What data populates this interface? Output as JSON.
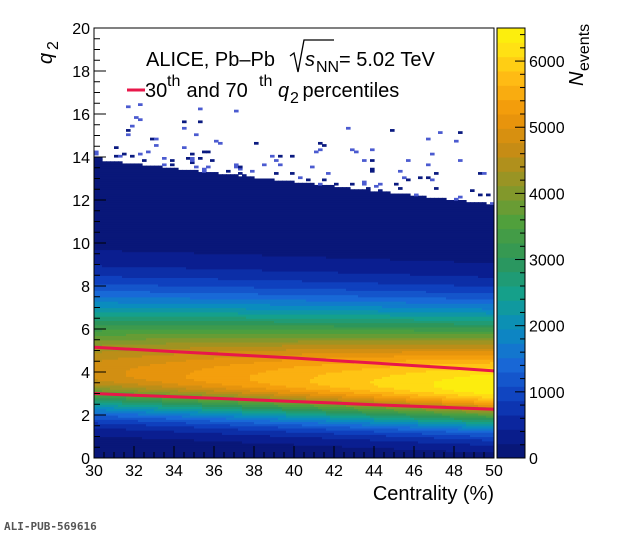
{
  "chart_data": {
    "type": "heatmap",
    "collaboration": "ALICE, Pb–Pb",
    "energy_symbol": "s",
    "energy_subscript": "NN",
    "energy_value": "= 5.02 TeV",
    "legend_line_base": "30",
    "legend_line_sup1": "th",
    "legend_line_and": " and 70",
    "legend_line_sup2": "th",
    "legend_line_var": "q",
    "legend_line_var_sub": "2",
    "legend_line_end": " percentiles",
    "xlabel": "Centrality (%)",
    "ylabel_main": "q",
    "ylabel_sub": "2",
    "zlabel_main": "N",
    "zlabel_sub": "events",
    "xlim": [
      30,
      50
    ],
    "ylim": [
      0,
      20
    ],
    "zlim": [
      0,
      6500
    ],
    "x_ticks": [
      "30",
      "32",
      "34",
      "36",
      "38",
      "40",
      "42",
      "44",
      "46",
      "48",
      "50"
    ],
    "y_ticks": [
      "0",
      "2",
      "4",
      "6",
      "8",
      "10",
      "12",
      "14",
      "16",
      "18",
      "20"
    ],
    "z_ticks": [
      "0",
      "1000",
      "2000",
      "3000",
      "4000",
      "5000",
      "6000"
    ],
    "z_tick_values": [
      0,
      1000,
      2000,
      3000,
      4000,
      5000,
      6000
    ],
    "percentile_30": {
      "x": [
        30,
        32,
        34,
        36,
        38,
        40,
        42,
        44,
        46,
        48,
        50
      ],
      "y": [
        3.0,
        2.92,
        2.85,
        2.78,
        2.7,
        2.63,
        2.56,
        2.48,
        2.41,
        2.34,
        2.27
      ]
    },
    "percentile_70": {
      "x": [
        30,
        32,
        34,
        36,
        38,
        40,
        42,
        44,
        46,
        48,
        50
      ],
      "y": [
        5.15,
        5.05,
        4.95,
        4.85,
        4.75,
        4.65,
        4.53,
        4.42,
        4.3,
        4.18,
        4.05
      ]
    },
    "series_color": "#e8174a"
  },
  "footer_id": "ALI-PUB-569616"
}
